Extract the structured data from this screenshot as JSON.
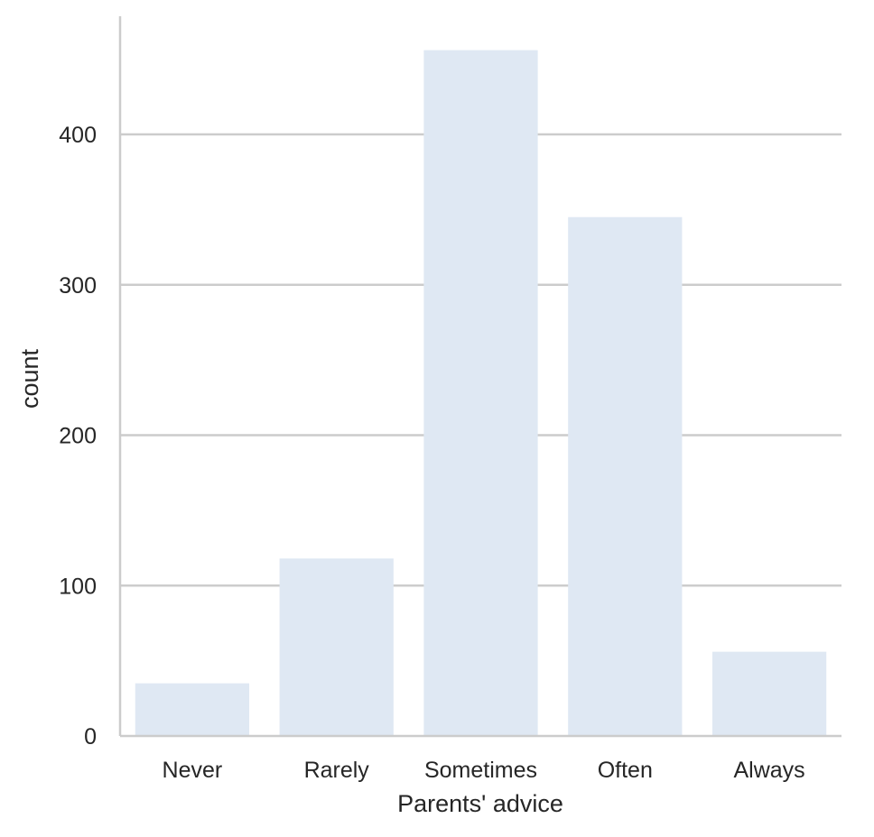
{
  "chart_data": {
    "type": "bar",
    "categories": [
      "Never",
      "Rarely",
      "Sometimes",
      "Often",
      "Always"
    ],
    "values": [
      35,
      118,
      456,
      345,
      56
    ],
    "xlabel": "Parents' advice",
    "ylabel": "count",
    "ylim": [
      0,
      478
    ],
    "yticks": [
      0,
      100,
      200,
      300,
      400
    ],
    "grid": true,
    "bar_color": "#dfe8f3",
    "grid_color": "#cccccc",
    "axis_color": "#cccccc"
  }
}
